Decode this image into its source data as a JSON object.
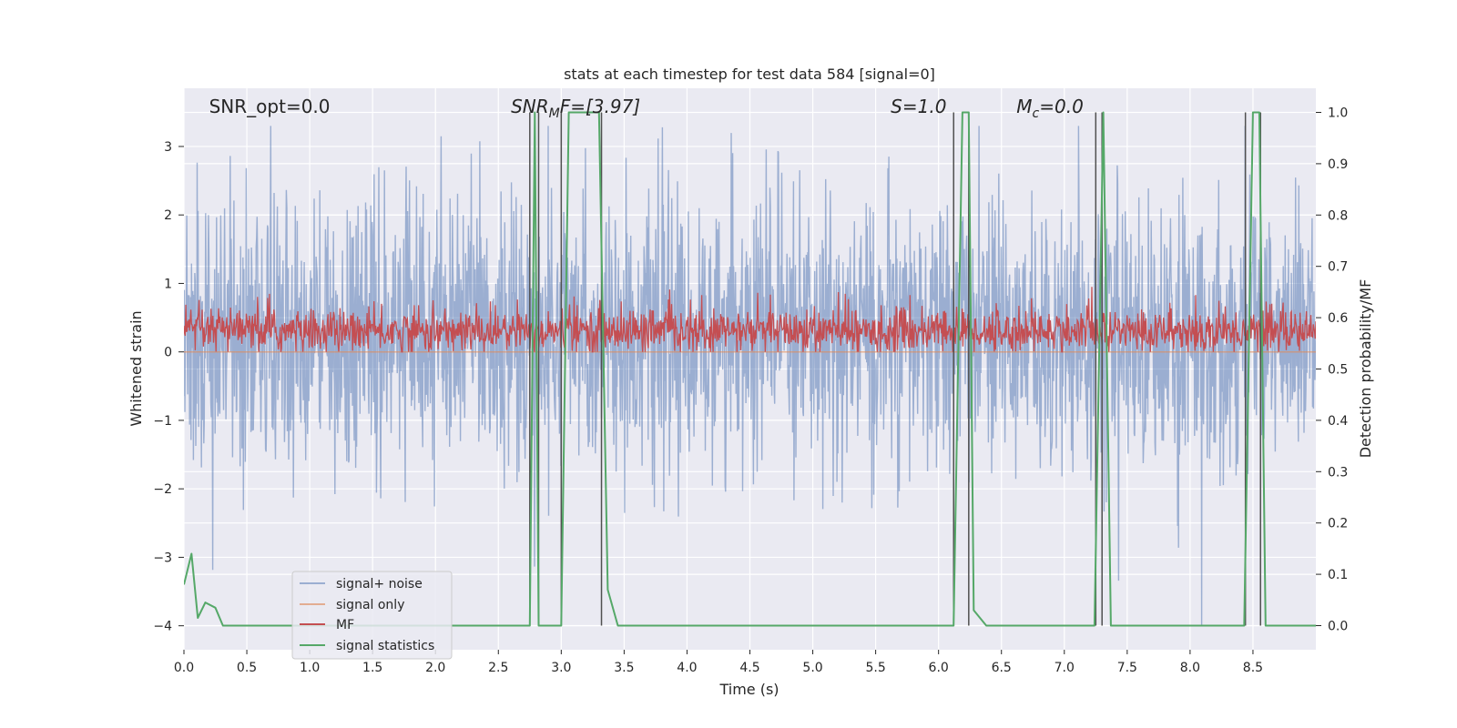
{
  "chart_data": {
    "type": "line",
    "title": "stats at each timestep for test data 584 [signal=0]",
    "xlabel": "Time (s)",
    "ylabel": "Whitened strain",
    "y2label": "Detection probability/MF",
    "xlim": [
      0.0,
      9.0
    ],
    "ylim": [
      -4.35,
      3.85
    ],
    "y2lim": [
      -0.047,
      1.047
    ],
    "x_ticks": [
      0.0,
      0.5,
      1.0,
      1.5,
      2.0,
      2.5,
      3.0,
      3.5,
      4.0,
      4.5,
      5.0,
      5.5,
      6.0,
      6.5,
      7.0,
      7.5,
      8.0,
      8.5
    ],
    "x_tick_labels": [
      "0.0",
      "0.5",
      "1.0",
      "1.5",
      "2.0",
      "2.5",
      "3.0",
      "3.5",
      "4.0",
      "4.5",
      "5.0",
      "5.5",
      "6.0",
      "6.5",
      "7.0",
      "7.5",
      "8.0",
      "8.5"
    ],
    "y_ticks": [
      3,
      2,
      1,
      0,
      -1,
      -2,
      -3,
      -4
    ],
    "y_tick_labels": [
      "3",
      "2",
      "1",
      "0",
      "−1",
      "−2",
      "−3",
      "−4"
    ],
    "y2_ticks": [
      1.0,
      0.9,
      0.8,
      0.7,
      0.6,
      0.5,
      0.4,
      0.3,
      0.2,
      0.1,
      0.0
    ],
    "y2_tick_labels": [
      "1.0",
      "0.9",
      "0.8",
      "0.7",
      "0.6",
      "0.5",
      "0.4",
      "0.3",
      "0.2",
      "0.1",
      "0.0"
    ],
    "grid": true,
    "legend_position": "lower-left",
    "annotations": [
      {
        "prefix": "SNR_opt",
        "sub": "",
        "suffix": "=0.0",
        "italic": false,
        "x": 0.2
      },
      {
        "prefix": "SNR",
        "sub": "M",
        "suffix": "F=[3.97]",
        "italic": true,
        "x": 2.6
      },
      {
        "prefix": "S",
        "sub": "",
        "suffix": "=1.0",
        "italic": true,
        "x": 5.62
      },
      {
        "prefix": "M",
        "sub": "c",
        "suffix": "=0.0",
        "italic": true,
        "x": 6.62
      }
    ],
    "series": [
      {
        "name": "signal+ noise",
        "color": "#4c72b0",
        "opacity": 0.5,
        "axis": "left",
        "description": "dense whitened noise trace, mostly within about [-1.5, 2.0], spikes up to ~3.3 and down to ~-4.0",
        "range": [
          -4.0,
          3.3
        ]
      },
      {
        "name": "signal only",
        "color": "#dd8452",
        "opacity": 0.6,
        "axis": "left",
        "x": [
          0.0,
          9.0
        ],
        "y": [
          0.0,
          0.0
        ]
      },
      {
        "name": "MF",
        "color": "#c44e52",
        "opacity": 1.0,
        "axis": "left",
        "description": "matched-filter trace between about 0.0 and 0.95",
        "range": [
          0.0,
          0.95
        ]
      },
      {
        "name": "signal statistics",
        "color": "#55a868",
        "opacity": 1.0,
        "axis": "right",
        "x": [
          0.0,
          0.06,
          0.11,
          0.17,
          0.25,
          0.31,
          1.0,
          2.0,
          2.75,
          2.79,
          2.82,
          2.86,
          3.0,
          3.06,
          3.3,
          3.37,
          3.45,
          4.0,
          5.0,
          6.0,
          6.12,
          6.19,
          6.24,
          6.28,
          6.38,
          6.5,
          7.0,
          7.24,
          7.31,
          7.37,
          7.5,
          8.0,
          8.43,
          8.5,
          8.55,
          8.6,
          9.0
        ],
        "y": [
          0.08,
          0.14,
          0.015,
          0.045,
          0.035,
          0.0,
          0.0,
          0.0,
          0.0,
          1.0,
          0.0,
          0.0,
          0.0,
          1.0,
          1.0,
          0.07,
          0.0,
          0.0,
          0.0,
          0.0,
          0.0,
          1.0,
          1.0,
          0.03,
          0.0,
          0.0,
          0.0,
          0.0,
          1.0,
          0.0,
          0.0,
          0.0,
          0.0,
          1.0,
          1.0,
          0.0,
          0.0
        ]
      }
    ],
    "vertical_lines": {
      "color": "#505050",
      "x": [
        2.75,
        2.82,
        3.0,
        3.32,
        6.12,
        6.24,
        7.25,
        7.3,
        8.44,
        8.56
      ]
    }
  }
}
